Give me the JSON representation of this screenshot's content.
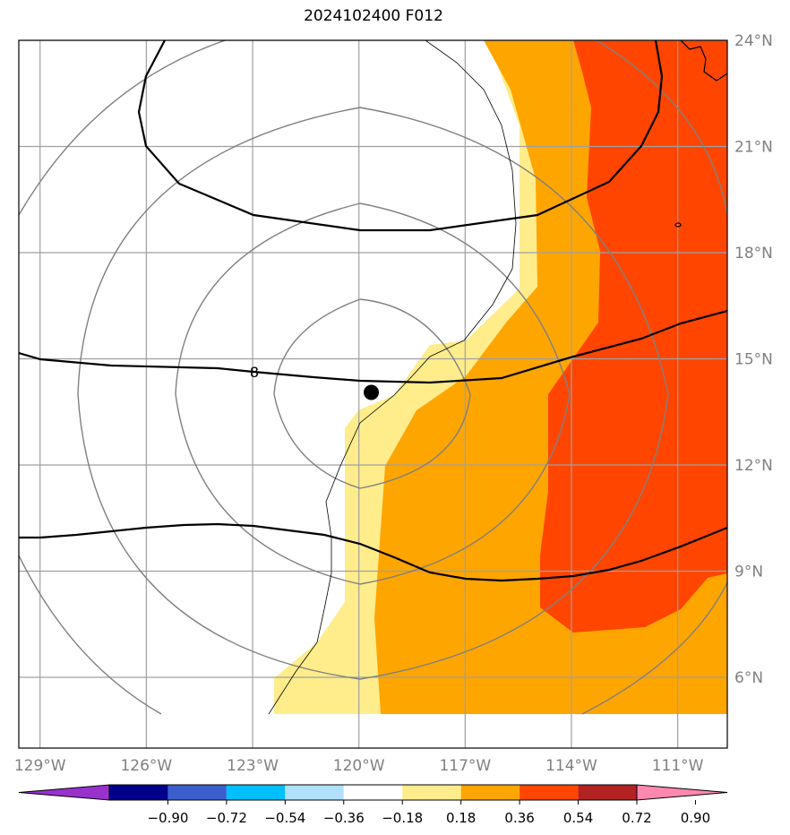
{
  "title": "2024102400 F012",
  "map": {
    "lon_range": [
      -129.6,
      -109.6
    ],
    "lat_range": [
      4.0,
      24.0
    ],
    "lon_ticks": [
      {
        "lon": -129,
        "label": "129°W"
      },
      {
        "lon": -126,
        "label": "126°W"
      },
      {
        "lon": -123,
        "label": "123°W"
      },
      {
        "lon": -120,
        "label": "120°W"
      },
      {
        "lon": -117,
        "label": "117°W"
      },
      {
        "lon": -114,
        "label": "114°W"
      },
      {
        "lon": -111,
        "label": "111°W"
      }
    ],
    "lat_ticks": [
      {
        "lat": 6,
        "label": "6°N"
      },
      {
        "lat": 9,
        "label": "9°N"
      },
      {
        "lat": 12,
        "label": "12°N"
      },
      {
        "lat": 15,
        "label": "15°N"
      },
      {
        "lat": 18,
        "label": "18°N"
      },
      {
        "lat": 21,
        "label": "21°N"
      },
      {
        "lat": 24,
        "label": "24°N"
      }
    ],
    "center_marker": {
      "lon": -119.65,
      "lat": 14.05
    },
    "contour_label": "8",
    "grid": true
  },
  "colorbar": {
    "labels": [
      "−0.90",
      "−0.72",
      "−0.54",
      "−0.36",
      "−0.18",
      "0.18",
      "0.36",
      "0.54",
      "0.72",
      "0.90"
    ],
    "colors": [
      "#9932cc",
      "#00008b",
      "#3a5fcd",
      "#00bfff",
      "#b0e0fa",
      "#ffffff",
      "#ffec8b",
      "#ffa500",
      "#ff4500",
      "#b22222",
      "#ff88b0"
    ],
    "extend": "both"
  }
}
